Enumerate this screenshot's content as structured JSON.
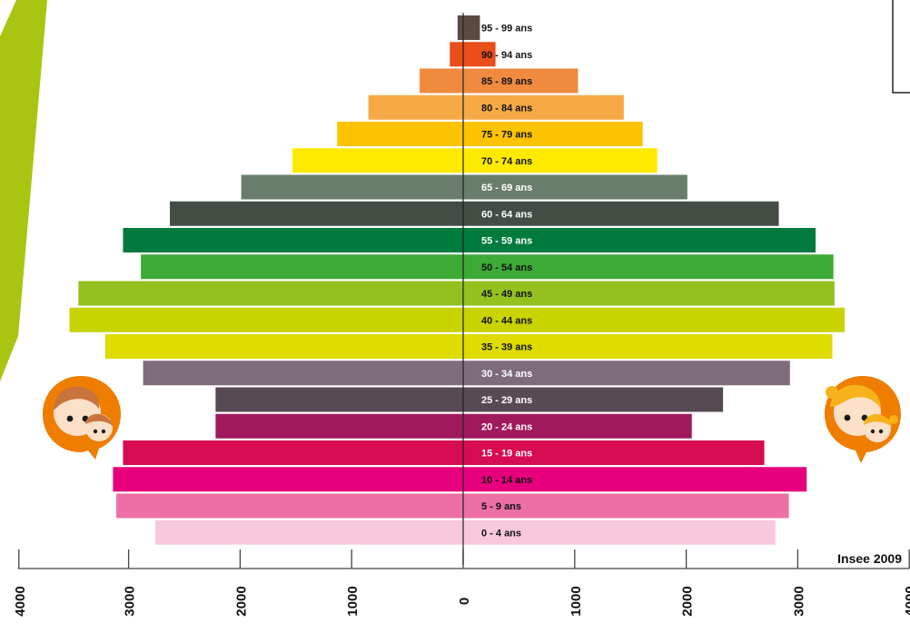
{
  "source_label": "Insee 2009",
  "colors": {
    "stripe": "#a9c511",
    "avatar_bg": "#ef7d00",
    "skin": "#fde0c8",
    "boy_hair": "#c8743a",
    "girl_hair": "#f6b21b",
    "axis": "#444444"
  },
  "icons": [
    "boy-avatar-icon",
    "girl-avatar-icon"
  ],
  "chart_data": {
    "type": "bar",
    "orientation": "population-pyramid",
    "title": "",
    "xlabel": "",
    "ylabel": "",
    "xlim": [
      -4000,
      4000
    ],
    "x_ticks": [
      -4000,
      -3000,
      -2000,
      -1000,
      0,
      1000,
      2000,
      3000,
      4000
    ],
    "x_tick_labels": [
      "4000",
      "3000",
      "2000",
      "1000",
      "0",
      "1000",
      "2000",
      "3000",
      "4000"
    ],
    "categories": [
      "95 - 99 ans",
      "90 - 94 ans",
      "85 - 89 ans",
      "80 - 84 ans",
      "75 - 79 ans",
      "70 - 74 ans",
      "65 - 69 ans",
      "60 - 64 ans",
      "55 - 59 ans",
      "50 - 54 ans",
      "45 - 49 ans",
      "40 - 44 ans",
      "35 - 39 ans",
      "30 - 34 ans",
      "25 - 29 ans",
      "20 - 24 ans",
      "15 - 19 ans",
      "10 - 14 ans",
      "5 - 9 ans",
      "0 - 4 ans"
    ],
    "series": [
      {
        "values": [
          50,
          120,
          390,
          850,
          1130,
          1530,
          1990,
          2630,
          3050,
          2890,
          3450,
          3530,
          3210,
          2870,
          2220,
          2220,
          3050,
          3140,
          3110,
          2760
        ]
      },
      {
        "values": [
          150,
          290,
          1030,
          1440,
          1610,
          1740,
          2010,
          2830,
          3160,
          3320,
          3330,
          3420,
          3310,
          2930,
          2330,
          2050,
          2700,
          3080,
          2920,
          2800
        ]
      }
    ],
    "bar_colors": [
      "#5c4a40",
      "#e94e1b",
      "#f08a3e",
      "#f6a945",
      "#fdc300",
      "#feea00",
      "#687d6b",
      "#434d44",
      "#007a3d",
      "#3daa35",
      "#94c11f",
      "#c8d300",
      "#dedc00",
      "#7f6c7b",
      "#574a52",
      "#a0195d",
      "#d60b52",
      "#e6007e",
      "#ec6fa6",
      "#f8c8dd"
    ],
    "label_colors": [
      "#111111",
      "#111111",
      "#111111",
      "#111111",
      "#111111",
      "#111111",
      "#ffffff",
      "#ffffff",
      "#ffffff",
      "#111111",
      "#111111",
      "#111111",
      "#111111",
      "#ffffff",
      "#ffffff",
      "#ffffff",
      "#ffffff",
      "#111111",
      "#111111",
      "#111111"
    ],
    "grid": false
  }
}
